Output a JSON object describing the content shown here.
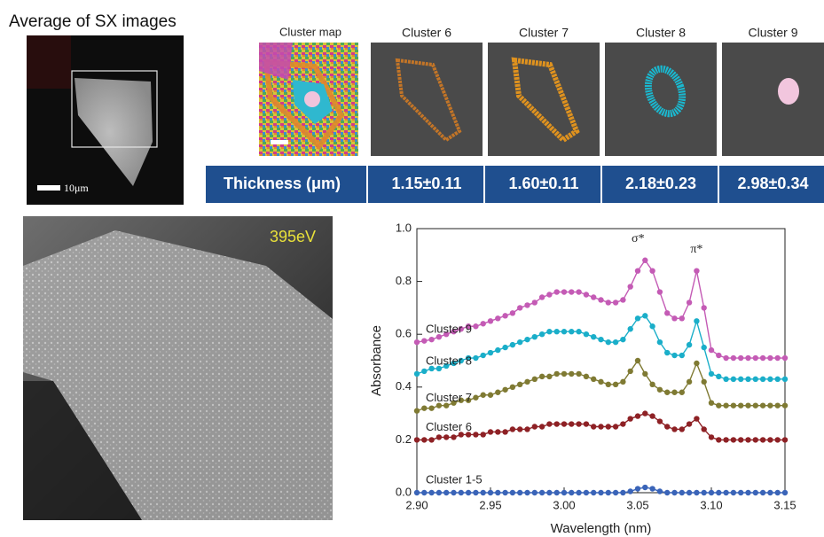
{
  "figure": {
    "title": "Average of SX images",
    "scale_bar": "10μm",
    "map_label": "Cluster map",
    "cluster_headers": [
      "Cluster 6",
      "Cluster 7",
      "Cluster 8",
      "Cluster 9"
    ],
    "thickness_label": "Thickness (μm)",
    "thickness_values": [
      "1.15±0.11",
      "1.60±0.11",
      "2.18±0.23",
      "2.98±0.34"
    ],
    "energy_label": "395eV"
  },
  "chart_data": {
    "type": "line",
    "xlabel": "Wavelength (nm)",
    "ylabel": "Absorbance",
    "annotations": [
      "σ*",
      "π*"
    ],
    "xlim": [
      2.9,
      3.15
    ],
    "ylim": [
      0,
      1
    ],
    "xticks": [
      {
        "value": 2.9,
        "label": "2.90"
      },
      2.95,
      {
        "value": 3.0,
        "label": "3.00"
      },
      3.05,
      {
        "value": 3.1,
        "label": "3.10"
      },
      3.15
    ],
    "yticks": [
      {
        "value": 0,
        "label": "0.0"
      },
      0.2,
      0.4,
      0.6,
      0.8,
      {
        "value": 1,
        "label": "1.0"
      }
    ],
    "x": [
      2.9,
      2.905,
      2.91,
      2.915,
      2.92,
      2.925,
      2.93,
      2.935,
      2.94,
      2.945,
      2.95,
      2.955,
      2.96,
      2.965,
      2.97,
      2.975,
      2.98,
      2.985,
      2.99,
      2.995,
      3.0,
      3.005,
      3.01,
      3.015,
      3.02,
      3.025,
      3.03,
      3.035,
      3.04,
      3.045,
      3.05,
      3.055,
      3.06,
      3.065,
      3.07,
      3.075,
      3.08,
      3.085,
      3.09,
      3.095,
      3.1,
      3.105,
      3.11,
      3.115,
      3.12,
      3.125,
      3.13,
      3.135,
      3.14,
      3.145,
      3.15
    ],
    "series": [
      {
        "name": "Cluster 1-5",
        "color": "#3a64b8",
        "values": [
          0,
          0,
          0,
          0,
          0,
          0,
          0,
          0,
          0,
          0,
          0,
          0,
          0,
          0,
          0,
          0,
          0,
          0,
          0,
          0,
          0,
          0,
          0,
          0,
          0,
          0,
          0,
          0,
          0,
          0.005,
          0.015,
          0.02,
          0.015,
          0.005,
          0,
          0,
          0,
          0,
          0,
          0,
          0,
          0,
          0,
          0,
          0,
          0,
          0,
          0,
          0,
          0,
          0
        ]
      },
      {
        "name": "Cluster 6",
        "color": "#8e2125",
        "values": [
          0.2,
          0.2,
          0.2,
          0.21,
          0.21,
          0.21,
          0.22,
          0.22,
          0.22,
          0.22,
          0.23,
          0.23,
          0.23,
          0.24,
          0.24,
          0.24,
          0.25,
          0.25,
          0.26,
          0.26,
          0.26,
          0.26,
          0.26,
          0.26,
          0.25,
          0.25,
          0.25,
          0.25,
          0.26,
          0.28,
          0.29,
          0.3,
          0.29,
          0.27,
          0.25,
          0.24,
          0.24,
          0.26,
          0.28,
          0.24,
          0.21,
          0.2,
          0.2,
          0.2,
          0.2,
          0.2,
          0.2,
          0.2,
          0.2,
          0.2,
          0.2
        ]
      },
      {
        "name": "Cluster 7",
        "color": "#7f7a33",
        "values": [
          0.31,
          0.32,
          0.32,
          0.33,
          0.33,
          0.34,
          0.35,
          0.35,
          0.36,
          0.37,
          0.37,
          0.38,
          0.39,
          0.4,
          0.41,
          0.42,
          0.43,
          0.44,
          0.44,
          0.45,
          0.45,
          0.45,
          0.45,
          0.44,
          0.43,
          0.42,
          0.41,
          0.41,
          0.42,
          0.46,
          0.5,
          0.45,
          0.41,
          0.39,
          0.38,
          0.38,
          0.38,
          0.42,
          0.49,
          0.42,
          0.34,
          0.33,
          0.33,
          0.33,
          0.33,
          0.33,
          0.33,
          0.33,
          0.33,
          0.33,
          0.33
        ]
      },
      {
        "name": "Cluster 8",
        "color": "#1aaec9",
        "values": [
          0.45,
          0.46,
          0.47,
          0.47,
          0.48,
          0.49,
          0.5,
          0.51,
          0.51,
          0.52,
          0.53,
          0.54,
          0.55,
          0.56,
          0.57,
          0.58,
          0.59,
          0.6,
          0.61,
          0.61,
          0.61,
          0.61,
          0.61,
          0.6,
          0.59,
          0.58,
          0.57,
          0.57,
          0.58,
          0.62,
          0.66,
          0.67,
          0.63,
          0.57,
          0.53,
          0.52,
          0.52,
          0.56,
          0.65,
          0.55,
          0.45,
          0.44,
          0.43,
          0.43,
          0.43,
          0.43,
          0.43,
          0.43,
          0.43,
          0.43,
          0.43
        ]
      },
      {
        "name": "Cluster 9",
        "color": "#c45bb5",
        "values": [
          0.57,
          0.575,
          0.58,
          0.59,
          0.6,
          0.61,
          0.62,
          0.63,
          0.63,
          0.64,
          0.65,
          0.66,
          0.67,
          0.68,
          0.7,
          0.71,
          0.72,
          0.74,
          0.75,
          0.76,
          0.76,
          0.76,
          0.76,
          0.75,
          0.74,
          0.73,
          0.72,
          0.72,
          0.73,
          0.78,
          0.84,
          0.88,
          0.84,
          0.76,
          0.68,
          0.66,
          0.66,
          0.72,
          0.84,
          0.7,
          0.54,
          0.52,
          0.51,
          0.51,
          0.51,
          0.51,
          0.51,
          0.51,
          0.51,
          0.51,
          0.51
        ]
      }
    ]
  }
}
